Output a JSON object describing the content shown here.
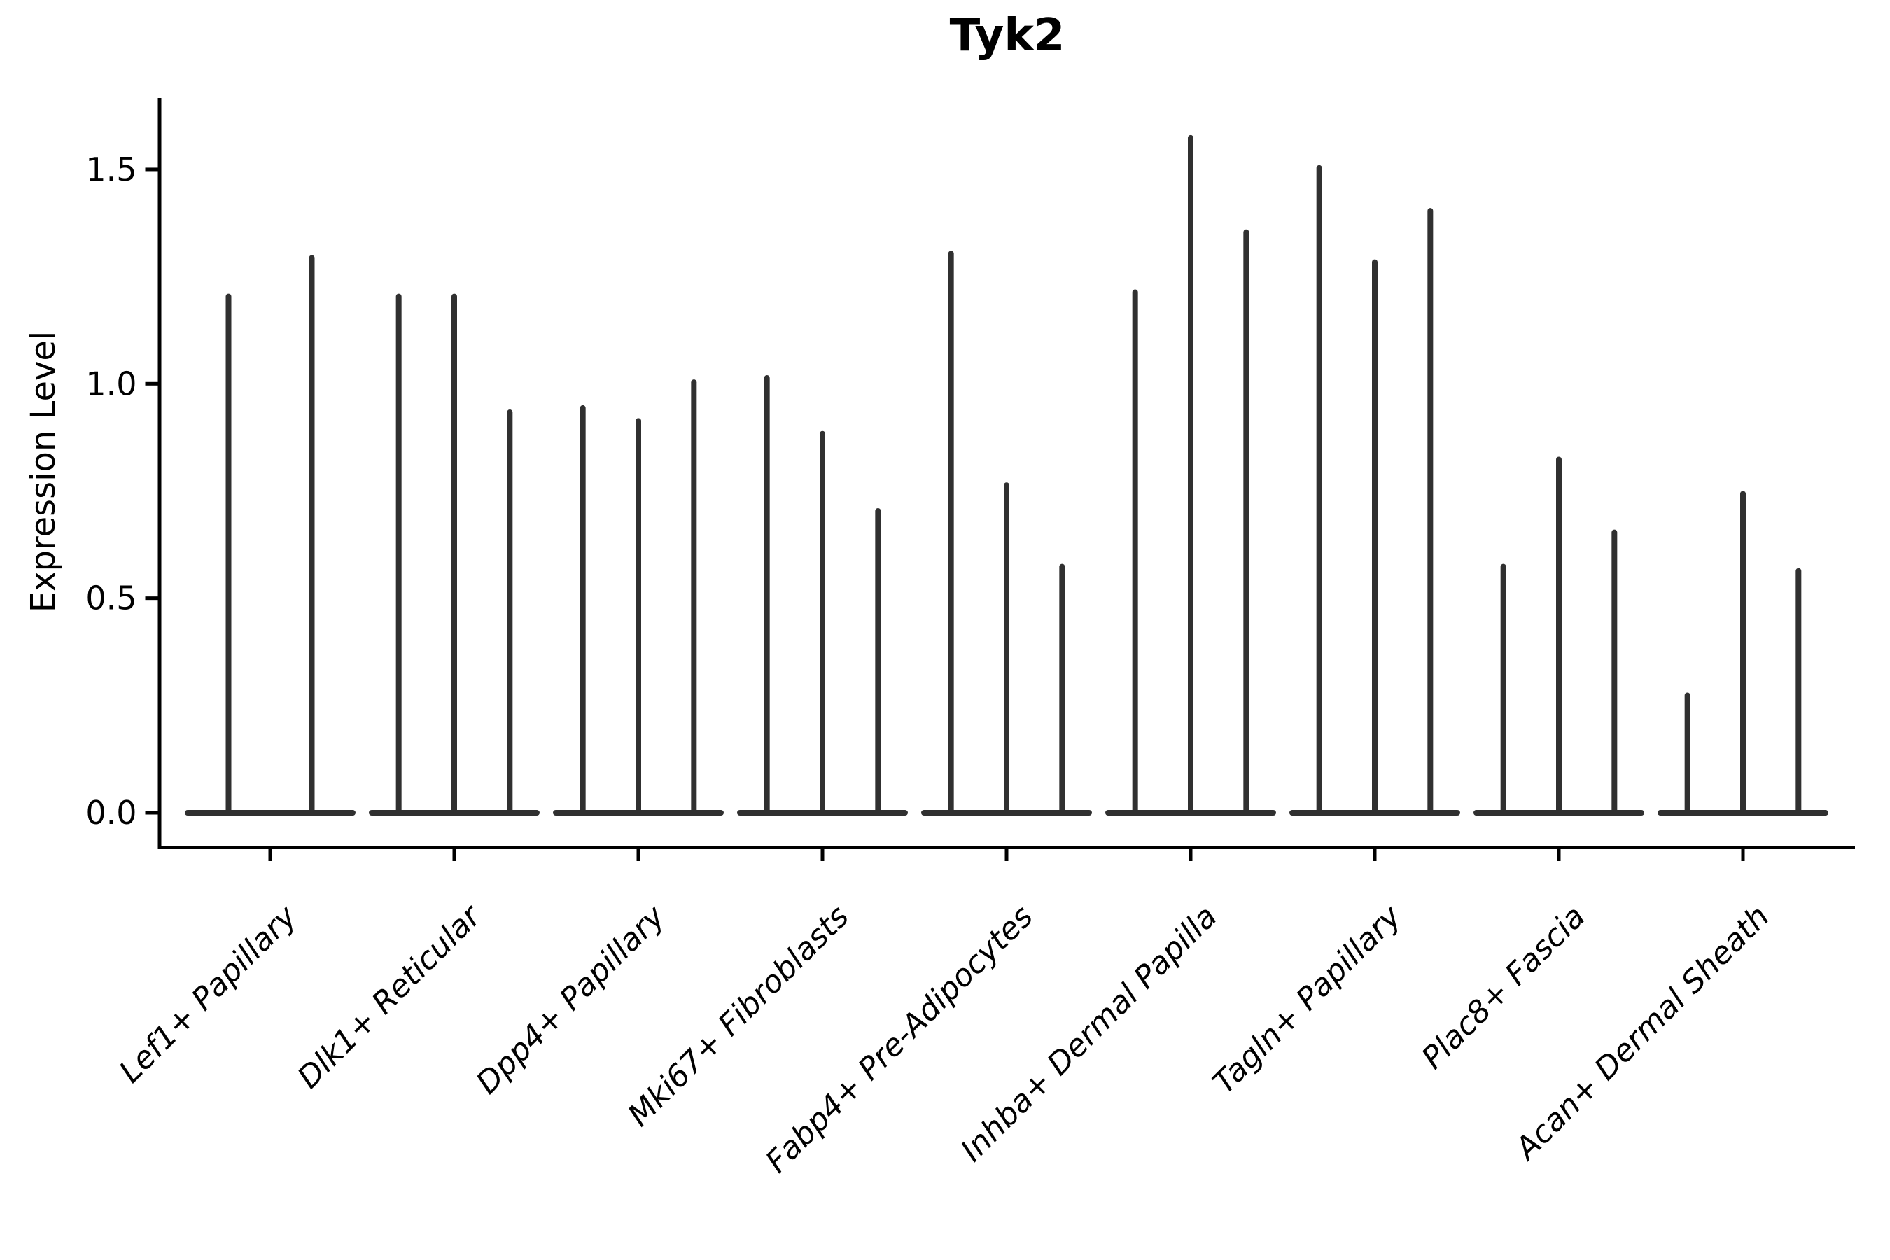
{
  "chart_data": {
    "type": "violin",
    "title": "Tyk2",
    "xlabel": "",
    "ylabel": "Expression Level",
    "categories": [
      "Lef1+ Papillary",
      "Dlk1+ Reticular",
      "Dpp4+ Papillary",
      "Mki67+ Fibroblasts",
      "Fabp4+ Pre-Adipocytes",
      "Inhba+ Dermal Papilla",
      "Tagln+ Papillary",
      "Plac8+ Fascia",
      "Acan+ Dermal Sheath"
    ],
    "series": [
      {
        "name": "Lef1+ Papillary",
        "violin_max_values": [
          1.21,
          1.3
        ]
      },
      {
        "name": "Dlk1+ Reticular",
        "violin_max_values": [
          1.21,
          1.21,
          0.94
        ]
      },
      {
        "name": "Dpp4+ Papillary",
        "violin_max_values": [
          0.95,
          0.92,
          1.01
        ]
      },
      {
        "name": "Mki67+ Fibroblasts",
        "violin_max_values": [
          1.02,
          0.89,
          0.71
        ]
      },
      {
        "name": "Fabp4+ Pre-Adipocytes",
        "violin_max_values": [
          1.31,
          0.77,
          0.58
        ]
      },
      {
        "name": "Inhba+ Dermal Papilla",
        "violin_max_values": [
          1.22,
          1.58,
          1.36
        ]
      },
      {
        "name": "Tagln+ Papillary",
        "violin_max_values": [
          1.51,
          1.29,
          1.41
        ]
      },
      {
        "name": "Plac8+ Fascia",
        "violin_max_values": [
          0.58,
          0.83,
          0.66
        ]
      },
      {
        "name": "Acan+ Dermal Sheath",
        "violin_max_values": [
          0.28,
          0.75,
          0.57
        ]
      }
    ],
    "yticks": [
      "0.0",
      "0.5",
      "1.0",
      "1.5"
    ],
    "ylim": [
      -0.08,
      1.67
    ],
    "grid": false,
    "legend": "none",
    "colors": {
      "violin_stroke": "#303030",
      "axis": "#000000",
      "text": "#000000",
      "background": "#ffffff"
    },
    "style_note": "violins collapse to thin vertical spikes rising from a flat base at expression 0 (sparse single-cell expression); no fill, no top/right spines"
  }
}
